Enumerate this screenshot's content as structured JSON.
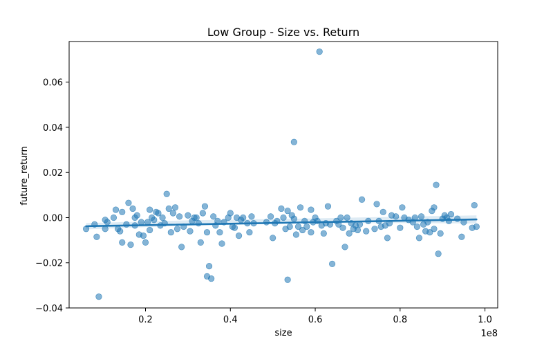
{
  "chart_data": {
    "type": "scatter",
    "title": "Low Group - Size vs. Return",
    "xlabel": "size",
    "ylabel": "future_return",
    "x_offset_label": "1e8",
    "x_scale": 100000000,
    "xlim": [
      0.02,
      1.03
    ],
    "ylim": [
      -0.04,
      0.078
    ],
    "xticks": [
      0.2,
      0.4,
      0.6,
      0.8,
      1.0
    ],
    "xtick_labels": [
      "0.2",
      "0.4",
      "0.6",
      "0.8",
      "1.0"
    ],
    "yticks": [
      -0.04,
      -0.02,
      0.0,
      0.02,
      0.04,
      0.06
    ],
    "ytick_labels": [
      "−0.04",
      "−0.02",
      "0.00",
      "0.02",
      "0.04",
      "0.06"
    ],
    "grid": false,
    "legend": "none",
    "point_color": "#1f77b4",
    "regression": {
      "x": [
        0.06,
        0.98
      ],
      "y": [
        -0.0038,
        -0.0008
      ],
      "ci": [
        [
          0.06,
          -0.0052,
          -0.0024
        ],
        [
          0.3,
          -0.0035,
          -0.0012
        ],
        [
          0.55,
          -0.0025,
          -0.0005
        ],
        [
          0.8,
          -0.0024,
          0.0004
        ],
        [
          0.98,
          -0.0026,
          0.001
        ]
      ]
    },
    "points": [
      [
        0.06,
        -0.005
      ],
      [
        0.08,
        -0.003
      ],
      [
        0.085,
        -0.0085
      ],
      [
        0.09,
        -0.035
      ],
      [
        0.105,
        -0.001
      ],
      [
        0.105,
        -0.005
      ],
      [
        0.11,
        -0.002
      ],
      [
        0.125,
        0.0
      ],
      [
        0.13,
        0.0035
      ],
      [
        0.135,
        -0.005
      ],
      [
        0.14,
        -0.006
      ],
      [
        0.145,
        0.0025
      ],
      [
        0.145,
        -0.011
      ],
      [
        0.155,
        -0.003
      ],
      [
        0.16,
        0.0065
      ],
      [
        0.165,
        -0.012
      ],
      [
        0.17,
        0.004
      ],
      [
        0.175,
        0.0
      ],
      [
        0.175,
        -0.0035
      ],
      [
        0.18,
        0.001
      ],
      [
        0.185,
        -0.0075
      ],
      [
        0.19,
        -0.002
      ],
      [
        0.195,
        -0.008
      ],
      [
        0.2,
        -0.011
      ],
      [
        0.205,
        -0.002
      ],
      [
        0.21,
        0.0035
      ],
      [
        0.21,
        -0.0055
      ],
      [
        0.215,
        0.0
      ],
      [
        0.22,
        -0.001
      ],
      [
        0.225,
        0.0025
      ],
      [
        0.23,
        0.002
      ],
      [
        0.235,
        -0.0035
      ],
      [
        0.24,
        0.0
      ],
      [
        0.245,
        -0.0025
      ],
      [
        0.25,
        0.0105
      ],
      [
        0.255,
        0.004
      ],
      [
        0.26,
        -0.0065
      ],
      [
        0.265,
        0.002
      ],
      [
        0.27,
        0.0045
      ],
      [
        0.275,
        -0.005
      ],
      [
        0.28,
        0.0005
      ],
      [
        0.285,
        -0.013
      ],
      [
        0.29,
        -0.004
      ],
      [
        0.3,
        0.001
      ],
      [
        0.305,
        -0.006
      ],
      [
        0.31,
        -0.0015
      ],
      [
        0.315,
        0.0
      ],
      [
        0.32,
        0.0
      ],
      [
        0.325,
        -0.0025
      ],
      [
        0.33,
        -0.011
      ],
      [
        0.335,
        0.002
      ],
      [
        0.34,
        0.005
      ],
      [
        0.345,
        -0.0065
      ],
      [
        0.345,
        -0.026
      ],
      [
        0.35,
        -0.0215
      ],
      [
        0.355,
        -0.027
      ],
      [
        0.36,
        0.0005
      ],
      [
        0.365,
        -0.0035
      ],
      [
        0.37,
        -0.0015
      ],
      [
        0.375,
        -0.0065
      ],
      [
        0.38,
        -0.0115
      ],
      [
        0.385,
        -0.002
      ],
      [
        0.395,
        0.0
      ],
      [
        0.4,
        0.002
      ],
      [
        0.405,
        -0.004
      ],
      [
        0.41,
        -0.0045
      ],
      [
        0.415,
        0.0
      ],
      [
        0.42,
        -0.008
      ],
      [
        0.425,
        -0.001
      ],
      [
        0.43,
        0.0
      ],
      [
        0.44,
        -0.0025
      ],
      [
        0.445,
        -0.0065
      ],
      [
        0.45,
        0.0005
      ],
      [
        0.455,
        -0.0025
      ],
      [
        0.485,
        -0.002
      ],
      [
        0.495,
        0.0005
      ],
      [
        0.5,
        -0.009
      ],
      [
        0.505,
        -0.0025
      ],
      [
        0.51,
        -0.0015
      ],
      [
        0.52,
        0.004
      ],
      [
        0.525,
        0.0
      ],
      [
        0.53,
        -0.005
      ],
      [
        0.535,
        -0.0275
      ],
      [
        0.535,
        0.003
      ],
      [
        0.54,
        -0.004
      ],
      [
        0.545,
        0.001
      ],
      [
        0.55,
        0.0335
      ],
      [
        0.55,
        -0.0005
      ],
      [
        0.555,
        -0.0075
      ],
      [
        0.56,
        -0.004
      ],
      [
        0.565,
        0.0045
      ],
      [
        0.57,
        -0.0055
      ],
      [
        0.575,
        -0.0015
      ],
      [
        0.58,
        -0.004
      ],
      [
        0.59,
        -0.0065
      ],
      [
        0.59,
        0.0035
      ],
      [
        0.595,
        -0.002
      ],
      [
        0.6,
        0.0
      ],
      [
        0.605,
        -0.0015
      ],
      [
        0.61,
        0.0735
      ],
      [
        0.615,
        -0.0035
      ],
      [
        0.62,
        -0.007
      ],
      [
        0.625,
        -0.0025
      ],
      [
        0.63,
        0.005
      ],
      [
        0.635,
        -0.003
      ],
      [
        0.64,
        -0.0205
      ],
      [
        0.65,
        -0.0015
      ],
      [
        0.655,
        -0.003
      ],
      [
        0.66,
        0.0
      ],
      [
        0.665,
        -0.0045
      ],
      [
        0.67,
        -0.013
      ],
      [
        0.675,
        0.0
      ],
      [
        0.68,
        -0.007
      ],
      [
        0.685,
        -0.0025
      ],
      [
        0.69,
        -0.005
      ],
      [
        0.695,
        -0.0035
      ],
      [
        0.7,
        -0.0055
      ],
      [
        0.705,
        -0.003
      ],
      [
        0.71,
        0.008
      ],
      [
        0.72,
        -0.006
      ],
      [
        0.725,
        -0.0015
      ],
      [
        0.74,
        -0.005
      ],
      [
        0.745,
        0.006
      ],
      [
        0.75,
        -0.0015
      ],
      [
        0.755,
        -0.004
      ],
      [
        0.76,
        0.0025
      ],
      [
        0.765,
        -0.0035
      ],
      [
        0.77,
        -0.009
      ],
      [
        0.775,
        -0.0025
      ],
      [
        0.78,
        0.001
      ],
      [
        0.79,
        0.0005
      ],
      [
        0.8,
        -0.0045
      ],
      [
        0.805,
        0.0045
      ],
      [
        0.81,
        0.0
      ],
      [
        0.82,
        -0.001
      ],
      [
        0.83,
        -0.002
      ],
      [
        0.835,
        0.0
      ],
      [
        0.84,
        -0.004
      ],
      [
        0.845,
        -0.009
      ],
      [
        0.85,
        0.0005
      ],
      [
        0.855,
        -0.003
      ],
      [
        0.86,
        -0.006
      ],
      [
        0.865,
        -0.002
      ],
      [
        0.87,
        -0.0065
      ],
      [
        0.875,
        0.003
      ],
      [
        0.88,
        0.0045
      ],
      [
        0.88,
        -0.005
      ],
      [
        0.885,
        0.0145
      ],
      [
        0.89,
        -0.016
      ],
      [
        0.895,
        -0.007
      ],
      [
        0.9,
        -0.0005
      ],
      [
        0.905,
        0.001
      ],
      [
        0.91,
        0.0
      ],
      [
        0.915,
        -0.0015
      ],
      [
        0.92,
        0.0015
      ],
      [
        0.935,
        -0.0005
      ],
      [
        0.945,
        -0.0085
      ],
      [
        0.95,
        -0.002
      ],
      [
        0.97,
        -0.0045
      ],
      [
        0.975,
        0.0055
      ],
      [
        0.98,
        -0.004
      ]
    ]
  }
}
